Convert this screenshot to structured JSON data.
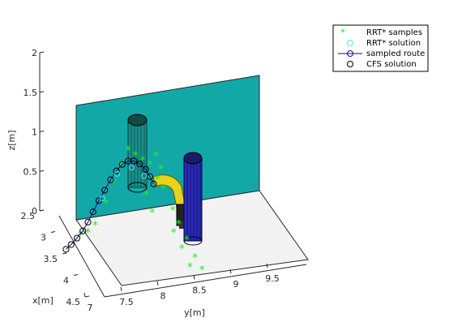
{
  "chart_data": {
    "type": "scatter",
    "projection": "3d",
    "title": "",
    "xlabel": "x[m]",
    "ylabel": "y[m]",
    "zlabel": "z[m]",
    "xlim": [
      2.5,
      4.5
    ],
    "ylim": [
      7,
      9.5
    ],
    "zlim": [
      0,
      2
    ],
    "x_ticks": [
      "2.5",
      "3",
      "3.5",
      "4",
      "4.5"
    ],
    "y_ticks": [
      "7",
      "7.5",
      "8",
      "8.5",
      "9",
      "9.5"
    ],
    "z_ticks": [
      "0",
      "0.5",
      "1",
      "1.5",
      "2"
    ],
    "grid": false,
    "legend_position": "top-right",
    "legend": [
      {
        "label": "RRT* samples",
        "marker": "asterisk",
        "color": "#22ee22"
      },
      {
        "label": "RRT* solution",
        "marker": "circle",
        "color": "#55e6ee"
      },
      {
        "label": "sampled route",
        "marker": "circle-line",
        "color": "#0a0a9a"
      },
      {
        "label": "CFS solution",
        "marker": "circle",
        "color": "#000000"
      }
    ],
    "series": [
      {
        "name": "CFS solution",
        "points": [
          {
            "x": 3.5,
            "y": 7.05,
            "z": 0.05
          },
          {
            "x": 3.5,
            "y": 7.12,
            "z": 0.1
          },
          {
            "x": 3.5,
            "y": 7.2,
            "z": 0.17
          },
          {
            "x": 3.5,
            "y": 7.28,
            "z": 0.25
          },
          {
            "x": 3.5,
            "y": 7.35,
            "z": 0.35
          },
          {
            "x": 3.5,
            "y": 7.42,
            "z": 0.47
          },
          {
            "x": 3.5,
            "y": 7.5,
            "z": 0.6
          },
          {
            "x": 3.5,
            "y": 7.58,
            "z": 0.72
          },
          {
            "x": 3.5,
            "y": 7.66,
            "z": 0.84
          },
          {
            "x": 3.5,
            "y": 7.74,
            "z": 0.94
          },
          {
            "x": 3.5,
            "y": 7.82,
            "z": 1.01
          },
          {
            "x": 3.5,
            "y": 7.9,
            "z": 1.04
          },
          {
            "x": 3.5,
            "y": 7.98,
            "z": 1.03
          },
          {
            "x": 3.5,
            "y": 8.06,
            "z": 0.98
          },
          {
            "x": 3.5,
            "y": 8.14,
            "z": 0.9
          },
          {
            "x": 3.5,
            "y": 8.2,
            "z": 0.8
          },
          {
            "x": 3.5,
            "y": 8.25,
            "z": 0.7
          }
        ]
      },
      {
        "name": "RRT* solution",
        "points": [
          {
            "x": 3.5,
            "y": 7.55,
            "z": 0.62
          },
          {
            "x": 3.5,
            "y": 7.75,
            "z": 0.9
          },
          {
            "x": 3.5,
            "y": 7.95,
            "z": 0.95
          },
          {
            "x": 3.5,
            "y": 8.12,
            "z": 0.82
          }
        ]
      },
      {
        "name": "RRT* samples",
        "points": [
          {
            "x": 3.5,
            "y": 7.25,
            "z": 0.2
          },
          {
            "x": 3.5,
            "y": 7.35,
            "z": 0.22
          },
          {
            "x": 3.5,
            "y": 7.45,
            "z": 0.3
          },
          {
            "x": 3.5,
            "y": 7.6,
            "z": 0.55
          },
          {
            "x": 3.5,
            "y": 7.7,
            "z": 0.8
          },
          {
            "x": 3.5,
            "y": 7.8,
            "z": 1.0
          },
          {
            "x": 3.5,
            "y": 7.9,
            "z": 1.18
          },
          {
            "x": 3.5,
            "y": 8.0,
            "z": 1.1
          },
          {
            "x": 3.5,
            "y": 8.1,
            "z": 1.02
          },
          {
            "x": 3.5,
            "y": 8.2,
            "z": 0.95
          },
          {
            "x": 3.5,
            "y": 8.28,
            "z": 1.05
          },
          {
            "x": 3.5,
            "y": 8.35,
            "z": 0.88
          },
          {
            "x": 3.5,
            "y": 8.3,
            "z": 0.75
          },
          {
            "x": 3.5,
            "y": 8.38,
            "z": 0.62
          },
          {
            "x": 3.7,
            "y": 8.45,
            "z": 0.45
          },
          {
            "x": 3.8,
            "y": 8.5,
            "z": 0.32
          },
          {
            "x": 3.9,
            "y": 8.4,
            "z": 0.28
          },
          {
            "x": 4.0,
            "y": 8.55,
            "z": 0.22
          },
          {
            "x": 4.1,
            "y": 8.45,
            "z": 0.18
          },
          {
            "x": 4.2,
            "y": 8.6,
            "z": 0.1
          },
          {
            "x": 4.3,
            "y": 8.5,
            "z": 0.05
          },
          {
            "x": 4.35,
            "y": 8.65,
            "z": 0.02
          },
          {
            "x": 3.6,
            "y": 8.2,
            "z": 0.4
          },
          {
            "x": 3.5,
            "y": 8.15,
            "z": 0.58
          }
        ]
      }
    ]
  }
}
